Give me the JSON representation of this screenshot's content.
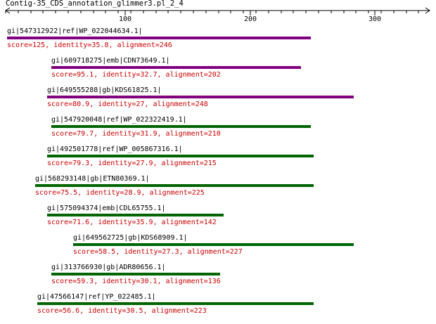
{
  "title": "Contig-35_CDS_annotation_glimmer3.pl_2_4",
  "ruler": {
    "ticks": [
      {
        "value": 100,
        "label": "100"
      },
      {
        "value": 200,
        "label": "200"
      },
      {
        "value": 300,
        "label": "300"
      }
    ]
  },
  "colors": {
    "purple": "#800080",
    "green": "#006400",
    "score": "#cc0000",
    "text": "#000000"
  },
  "hits": [
    {
      "id": "gi|547312922|ref|WP_022044634.1|",
      "score": "score=125, identity=35.8, alignment=246",
      "color": "purple"
    },
    {
      "id": "gi|609718275|emb|CDN73649.1|",
      "score": "score=95.1, identity=32.7, alignment=202",
      "color": "purple"
    },
    {
      "id": "gi|649555288|gb|KDS61825.1|",
      "score": "score=80.9, identity=27, alignment=248",
      "color": "purple"
    },
    {
      "id": "gi|547920048|ref|WP_022322419.1|",
      "score": "score=79.7, identity=31.9, alignment=210",
      "color": "green"
    },
    {
      "id": "gi|492501778|ref|WP_005867316.1|",
      "score": "score=79.3, identity=27.9, alignment=215",
      "color": "green"
    },
    {
      "id": "gi|568293148|gb|ETN80369.1|",
      "score": "score=75.5, identity=28.9, alignment=225",
      "color": "green"
    },
    {
      "id": "gi|575094374|emb|CDL65755.1|",
      "score": "score=71.6, identity=35.9, alignment=142",
      "color": "green"
    },
    {
      "id": "gi|649562725|gb|KDS68909.1|",
      "score": "score=58.5, identity=27.3, alignment=227",
      "color": "green"
    },
    {
      "id": "gi|313766930|gb|ADR80656.1|",
      "score": "score=59.3, identity=30.1, alignment=136",
      "color": "green"
    },
    {
      "id": "gi|47566147|ref|YP_022485.1|",
      "score": "score=56.6, identity=30.5, alignment=223",
      "color": "green"
    }
  ]
}
